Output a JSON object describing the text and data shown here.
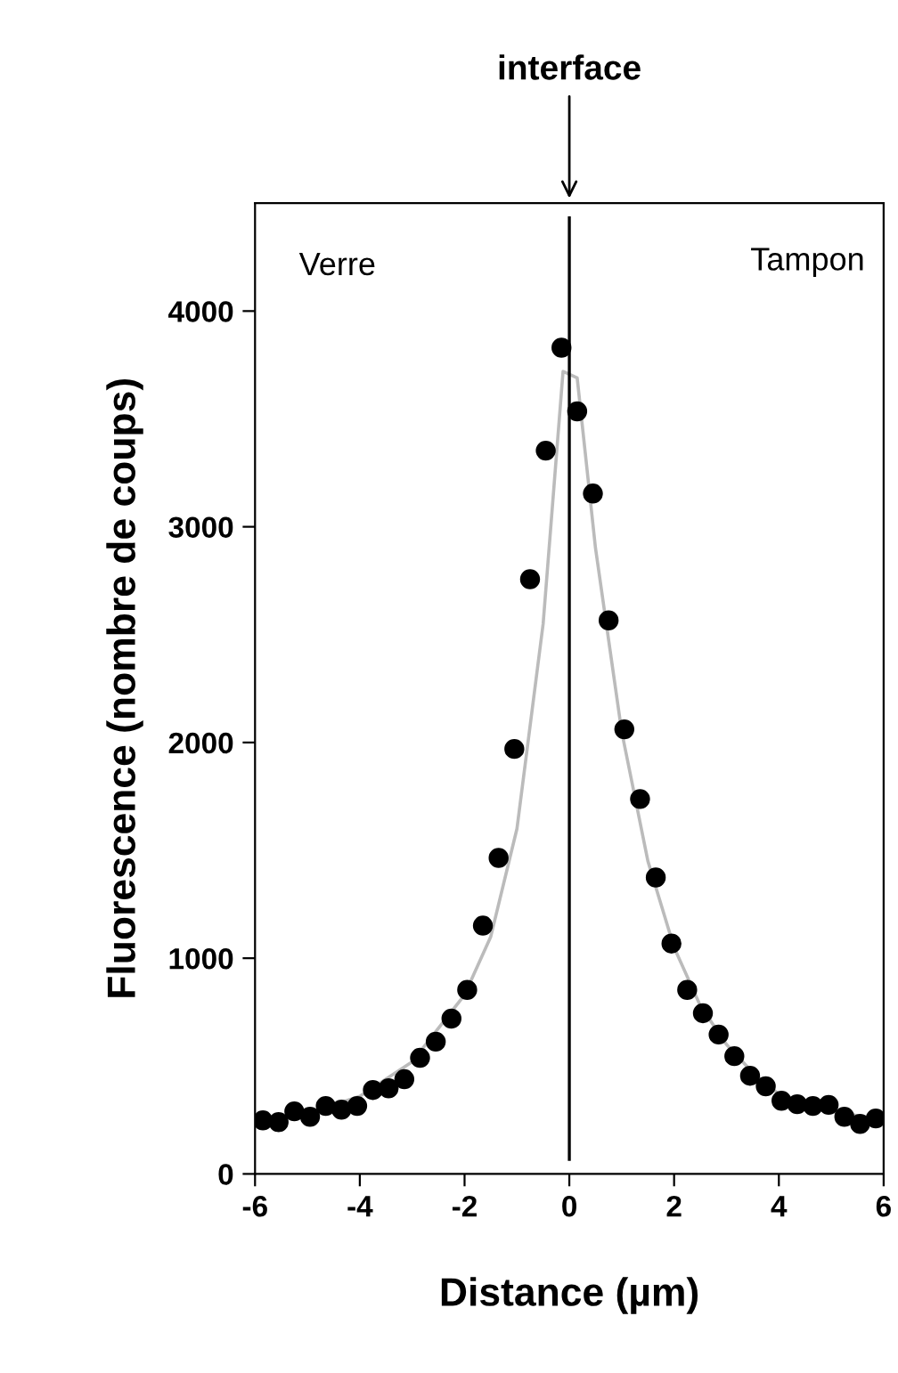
{
  "chart_data": {
    "type": "scatter",
    "xlabel": "Distance (µm)",
    "ylabel": "Fluorescence (nombre de coups)",
    "xlim": [
      -6,
      6
    ],
    "xticks": [
      -6,
      -4,
      -2,
      0,
      2,
      4,
      6
    ],
    "ylim": [
      0,
      4500
    ],
    "yticks": [
      0,
      1000,
      2000,
      3000,
      4000
    ],
    "grid": false,
    "legend": false,
    "marker": "circle",
    "series": [
      {
        "color": "#000000",
        "x": [
          -5.85,
          -5.55,
          -5.25,
          -4.95,
          -4.65,
          -4.35,
          -4.05,
          -3.75,
          -3.45,
          -3.15,
          -2.85,
          -2.55,
          -2.25,
          -1.95,
          -1.65,
          -1.35,
          -1.05,
          -0.75,
          -0.45,
          -0.15,
          0.15,
          0.45,
          0.75,
          1.05,
          1.35,
          1.65,
          1.95,
          2.25,
          2.55,
          2.85,
          3.15,
          3.45,
          3.75,
          4.05,
          4.35,
          4.65,
          4.95,
          5.25,
          5.55,
          5.85
        ],
        "values": [
          248,
          240,
          290,
          265,
          315,
          298,
          315,
          389,
          397,
          439,
          538,
          613,
          720,
          853,
          1151,
          1465,
          1970,
          2757,
          3353,
          3830,
          3535,
          3154,
          2566,
          2061,
          1738,
          1374,
          1068,
          853,
          745,
          646,
          546,
          455,
          406,
          339,
          323,
          315,
          320,
          265,
          232,
          257
        ]
      },
      {
        "type": "line",
        "color": "#bbbbbb",
        "marker": "none",
        "x": [
          -6,
          -5,
          -4,
          -3,
          -2,
          -1.5,
          -1,
          -0.5,
          -0.12,
          0.15,
          0.5,
          1,
          1.5,
          2,
          2.5,
          3,
          3.5,
          4,
          5,
          6
        ],
        "values": [
          230,
          280,
          360,
          520,
          830,
          1100,
          1600,
          2550,
          3720,
          3690,
          2900,
          2050,
          1450,
          1050,
          780,
          600,
          470,
          370,
          290,
          250
        ]
      }
    ],
    "ref_lines": [
      {
        "axis": "x",
        "value": 0,
        "label": "interface",
        "color": "#000000"
      }
    ],
    "annotations": [
      "Verre",
      "Tampon"
    ]
  }
}
